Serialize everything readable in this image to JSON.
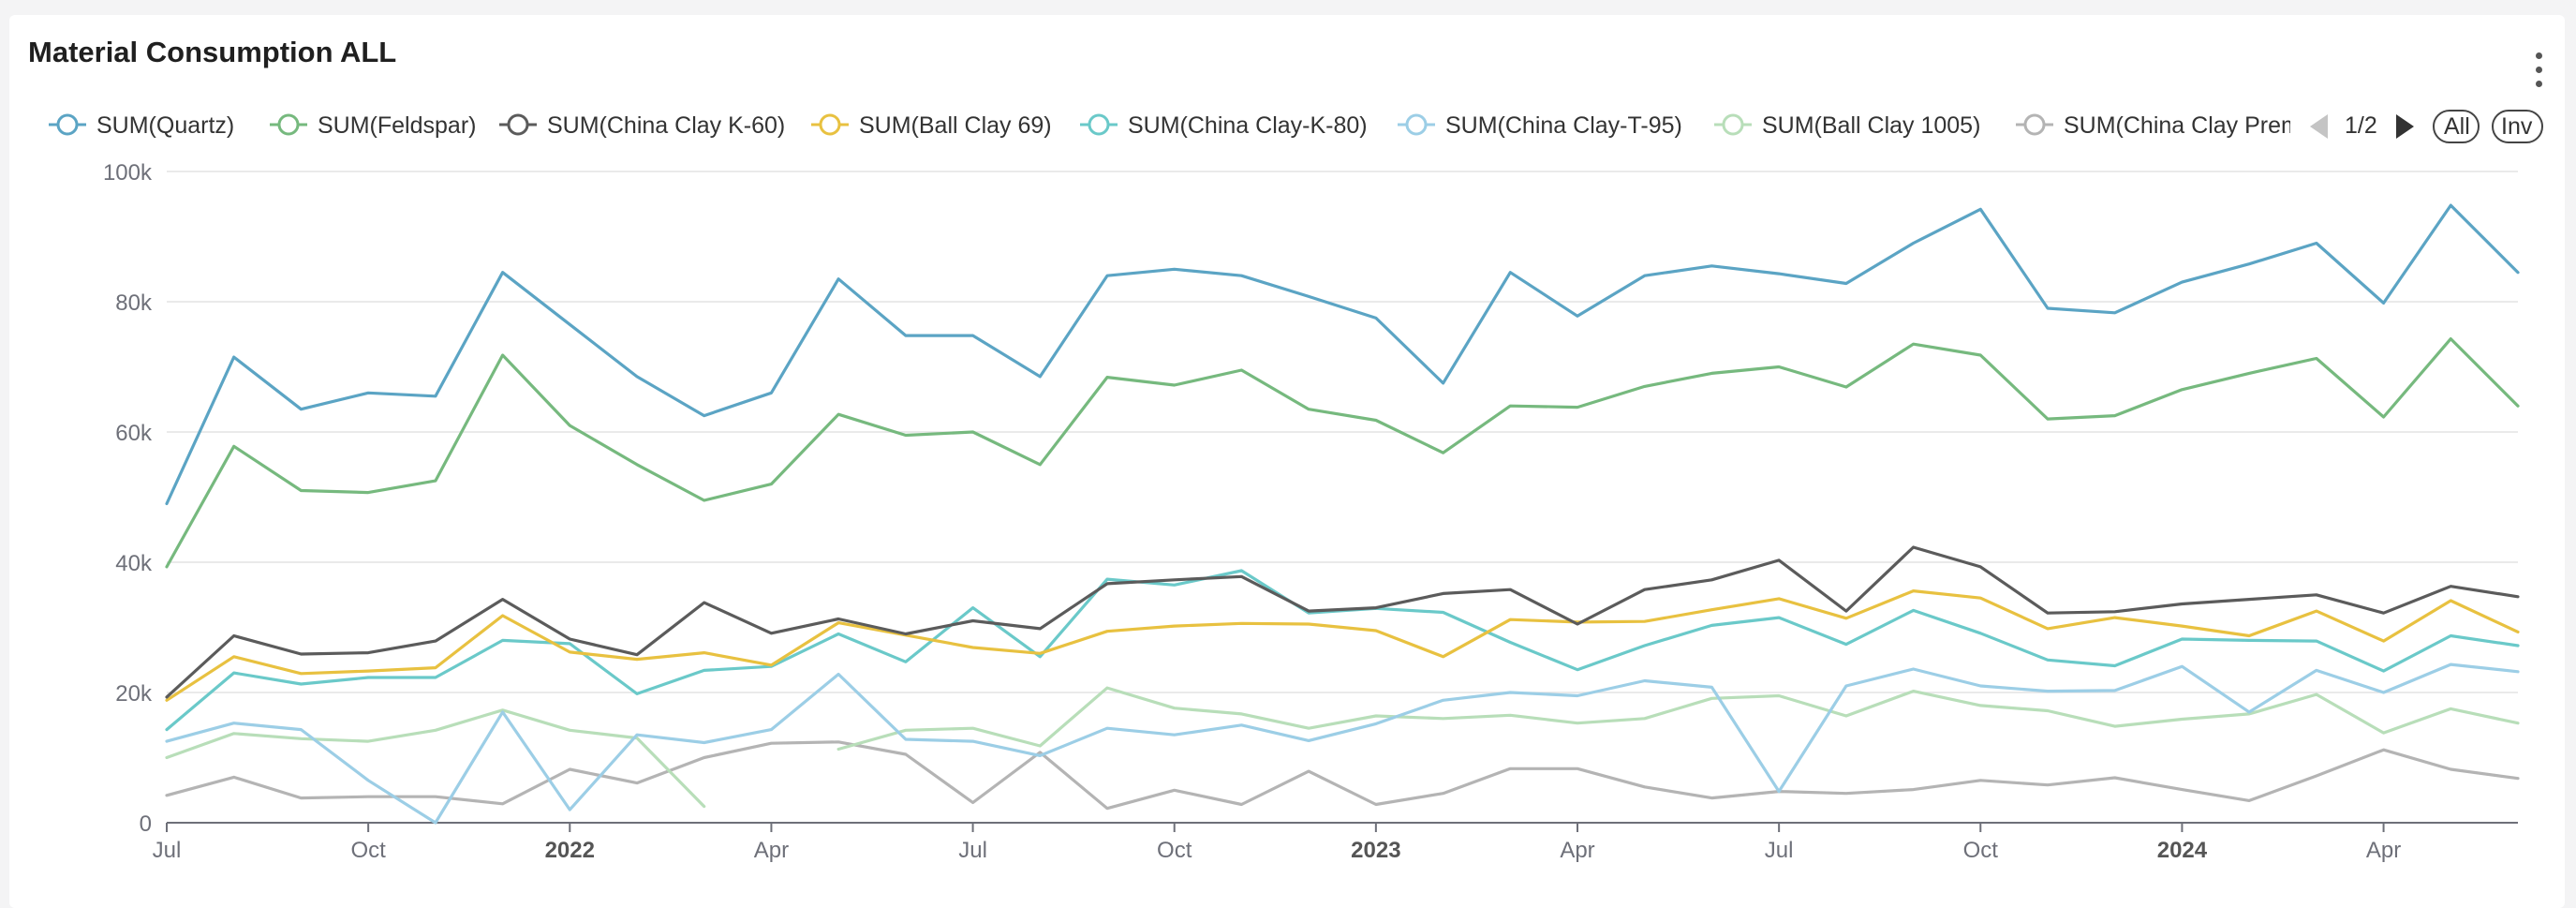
{
  "title": "Material Consumption ALL",
  "menu_icon": "more-vertical-icon",
  "legend": {
    "page_label": "1/2",
    "prev_icon": "triangle-left-icon",
    "next_icon": "triangle-right-icon",
    "all_label": "All",
    "inv_label": "Inv"
  },
  "chart_data": {
    "type": "line",
    "title": "Material Consumption ALL",
    "xlabel": "",
    "ylabel": "",
    "ylim": [
      0,
      100000
    ],
    "y_ticks": [
      0,
      20000,
      40000,
      60000,
      80000,
      100000
    ],
    "y_tick_labels": [
      "0",
      "20k",
      "40k",
      "60k",
      "80k",
      "100k"
    ],
    "x_ticks": [
      {
        "index": 0,
        "label": "Jul",
        "bold": false
      },
      {
        "index": 3,
        "label": "Oct",
        "bold": false
      },
      {
        "index": 6,
        "label": "2022",
        "bold": true
      },
      {
        "index": 9,
        "label": "Apr",
        "bold": false
      },
      {
        "index": 12,
        "label": "Jul",
        "bold": false
      },
      {
        "index": 15,
        "label": "Oct",
        "bold": false
      },
      {
        "index": 18,
        "label": "2023",
        "bold": true
      },
      {
        "index": 21,
        "label": "Apr",
        "bold": false
      },
      {
        "index": 24,
        "label": "Jul",
        "bold": false
      },
      {
        "index": 27,
        "label": "Oct",
        "bold": false
      },
      {
        "index": 30,
        "label": "2024",
        "bold": true
      },
      {
        "index": 33,
        "label": "Apr",
        "bold": false
      }
    ],
    "x": [
      "2021-07",
      "2021-08",
      "2021-09",
      "2021-10",
      "2021-11",
      "2021-12",
      "2022-01",
      "2022-02",
      "2022-03",
      "2022-04",
      "2022-05",
      "2022-06",
      "2022-07",
      "2022-08",
      "2022-09",
      "2022-10",
      "2022-11",
      "2022-12",
      "2023-01",
      "2023-02",
      "2023-03",
      "2023-04",
      "2023-05",
      "2023-06",
      "2023-07",
      "2023-08",
      "2023-09",
      "2023-10",
      "2023-11",
      "2023-12",
      "2024-01",
      "2024-02",
      "2024-03",
      "2024-04",
      "2024-05",
      "2024-06"
    ],
    "grid": true,
    "legend_position": "top",
    "series": [
      {
        "name": "SUM(Quartz)",
        "color": "#5ba4c4",
        "values": [
          49000,
          71500,
          63500,
          66000,
          65500,
          84500,
          76500,
          68500,
          62500,
          66000,
          83500,
          74800,
          74800,
          68500,
          84000,
          85000,
          84000,
          80800,
          77500,
          67500,
          84500,
          77800,
          84000,
          85500,
          84300,
          82800,
          89000,
          94200,
          79000,
          78300,
          83000,
          85800,
          89000,
          79800,
          94800,
          84500
        ]
      },
      {
        "name": "SUM(Feldspar)",
        "color": "#76b97e",
        "values": [
          39300,
          57800,
          51000,
          50700,
          52500,
          71800,
          61000,
          55000,
          49500,
          52000,
          62700,
          59500,
          60000,
          55000,
          68400,
          67200,
          69500,
          63500,
          61800,
          56800,
          64000,
          63800,
          67000,
          69000,
          70000,
          66900,
          73500,
          71800,
          62000,
          62500,
          66500,
          69000,
          71300,
          62300,
          74300,
          64000
        ]
      },
      {
        "name": "SUM(China Clay K-60)",
        "color": "#5b5b5b",
        "values": [
          19300,
          28700,
          25900,
          26100,
          27900,
          34300,
          28200,
          25800,
          33800,
          29100,
          31300,
          29000,
          31000,
          29800,
          36700,
          37300,
          37800,
          32500,
          33000,
          35200,
          35800,
          30500,
          35800,
          37300,
          40300,
          32500,
          42300,
          39300,
          32200,
          32400,
          33600,
          34300,
          35000,
          32200,
          36300,
          34700
        ]
      },
      {
        "name": "SUM(Ball Clay 69)",
        "color": "#e8c140",
        "values": [
          18800,
          25500,
          22900,
          23300,
          23800,
          31800,
          26200,
          25100,
          26100,
          24200,
          30700,
          28800,
          26900,
          26000,
          29400,
          30200,
          30600,
          30500,
          29500,
          25500,
          31200,
          30800,
          30900,
          32700,
          34400,
          31400,
          35600,
          34500,
          29800,
          31500,
          30200,
          28700,
          32500,
          27900,
          34100,
          29300
        ]
      },
      {
        "name": "SUM(China Clay-K-80)",
        "color": "#6ac9c9",
        "values": [
          14300,
          23000,
          21300,
          22300,
          22300,
          28000,
          27500,
          19800,
          23400,
          24000,
          29000,
          24700,
          33000,
          25500,
          37400,
          36500,
          38700,
          32200,
          32900,
          32300,
          27700,
          23500,
          27200,
          30300,
          31500,
          27400,
          32600,
          29100,
          25000,
          24100,
          28200,
          28000,
          27900,
          23300,
          28700,
          27200
        ]
      },
      {
        "name": "SUM(China Clay-T-95)",
        "color": "#9ccee6",
        "values": [
          12500,
          15300,
          14300,
          6500,
          0,
          17000,
          2000,
          13500,
          12300,
          14300,
          22800,
          12800,
          12500,
          10300,
          14500,
          13500,
          15000,
          12600,
          15200,
          18800,
          20000,
          19500,
          21800,
          20800,
          4800,
          21000,
          23600,
          21000,
          20200,
          20300,
          24000,
          17000,
          23400,
          20000,
          24300,
          23200
        ]
      },
      {
        "name": "SUM(Ball Clay 1005)",
        "color": "#b8deb9",
        "values": [
          10000,
          13700,
          12900,
          12500,
          14200,
          17300,
          14200,
          13000,
          2500,
          null,
          11300,
          14200,
          14500,
          11800,
          20700,
          17600,
          16700,
          14500,
          16400,
          16000,
          16500,
          15300,
          16000,
          19100,
          19500,
          16400,
          20200,
          18000,
          17200,
          14800,
          15900,
          16700,
          19700,
          13800,
          17500,
          15300
        ]
      },
      {
        "name": "SUM(China Clay Premium)",
        "color": "#b4b4b4",
        "values": [
          4200,
          7000,
          3800,
          4000,
          4000,
          2900,
          8200,
          6100,
          10000,
          12200,
          12400,
          10500,
          3100,
          10800,
          2200,
          5000,
          2800,
          7900,
          2800,
          4500,
          8300,
          8300,
          5500,
          3800,
          4800,
          4500,
          5100,
          6500,
          5800,
          6900,
          5100,
          3400,
          7200,
          11200,
          8200,
          6800
        ]
      }
    ]
  }
}
